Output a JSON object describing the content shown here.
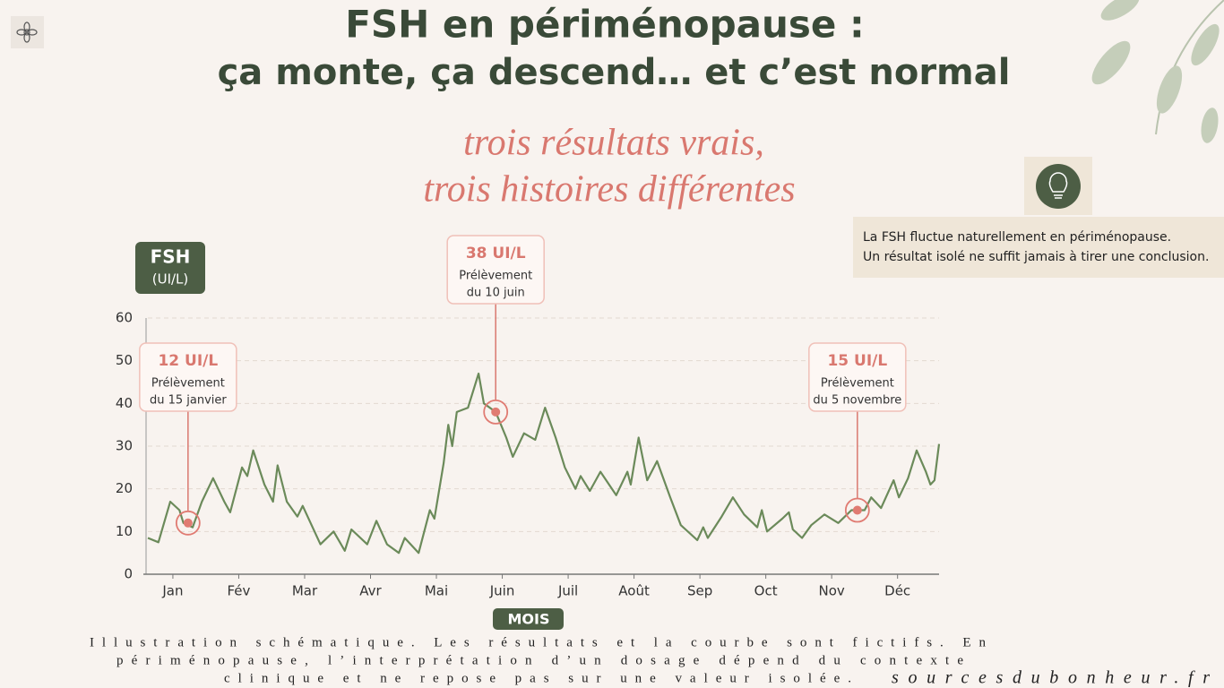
{
  "title_lines": [
    "FSH en périménopause :",
    "ça monte, ça descend… et c’est normal"
  ],
  "subtitle_lines": [
    "trois résultats vrais,",
    "trois histoires différentes"
  ],
  "info": [
    "La FSH fluctue naturellement en périménopause.",
    "Un résultat isolé ne suffit jamais à tirer une conclusion."
  ],
  "footer_lines": [
    "Illustration schématique. Les résultats et la courbe sont fictifs. En",
    "périménopause, l’interprétation d’un dosage dépend du contexte",
    "clinique et ne repose pas sur une valeur isolée."
  ],
  "brand": "sourcesdubonheur.fr",
  "chart_data": {
    "type": "line",
    "y_label": [
      "FSH",
      "(UI/L)"
    ],
    "x_label": "MOIS",
    "xlim": [
      -0.38,
      11.63
    ],
    "ylim": [
      0,
      60
    ],
    "xticks": [
      {
        "value": 0,
        "label": "Jan"
      },
      {
        "value": 1,
        "label": "Fév"
      },
      {
        "value": 2,
        "label": "Mar"
      },
      {
        "value": 3,
        "label": "Avr"
      },
      {
        "value": 4,
        "label": "Mai"
      },
      {
        "value": 5,
        "label": "Juin"
      },
      {
        "value": 6,
        "label": "Juil"
      },
      {
        "value": 7,
        "label": "Août"
      },
      {
        "value": 8,
        "label": "Sep"
      },
      {
        "value": 9,
        "label": "Oct"
      },
      {
        "value": 10,
        "label": "Nov"
      },
      {
        "value": 11,
        "label": "Déc"
      }
    ],
    "yticks": [
      0,
      10,
      20,
      30,
      40,
      50,
      60
    ],
    "grid": true,
    "x": [
      -0.38,
      -0.22,
      -0.04,
      0.1,
      0.16,
      0.3,
      0.44,
      0.61,
      0.78,
      0.87,
      1.05,
      1.13,
      1.22,
      1.39,
      1.52,
      1.59,
      1.73,
      1.89,
      1.97,
      2.24,
      2.44,
      2.61,
      2.71,
      2.95,
      3.09,
      3.25,
      3.43,
      3.52,
      3.73,
      3.9,
      3.97,
      4.11,
      4.18,
      4.24,
      4.31,
      4.48,
      4.64,
      4.72,
      4.9,
      5.06,
      5.16,
      5.33,
      5.5,
      5.65,
      5.81,
      5.95,
      6.11,
      6.19,
      6.33,
      6.49,
      6.73,
      6.9,
      6.95,
      7.07,
      7.2,
      7.35,
      7.55,
      7.71,
      7.96,
      8.05,
      8.12,
      8.33,
      8.5,
      8.67,
      8.87,
      8.94,
      9.02,
      9.25,
      9.35,
      9.41,
      9.55,
      9.69,
      9.89,
      10.1,
      10.3,
      10.5,
      10.6,
      10.75,
      10.94,
      11.02,
      11.16,
      11.29,
      11.43,
      11.5,
      11.56,
      11.63
    ],
    "series": [
      {
        "color": "#6b8a5a",
        "values": [
          8.5,
          7.5,
          17,
          15,
          12,
          11,
          17,
          22.5,
          17,
          14.5,
          25,
          23,
          29,
          21,
          17,
          25.5,
          17,
          13.5,
          16,
          7,
          10,
          5.5,
          10.5,
          7,
          12.5,
          7,
          5,
          8.5,
          5,
          15,
          13,
          26,
          35,
          30,
          38,
          39,
          47,
          40,
          38,
          32,
          27.5,
          33,
          31.5,
          39,
          32,
          25,
          20,
          23,
          19.5,
          24,
          18.5,
          24,
          21,
          32,
          22,
          26.5,
          18,
          11.5,
          8,
          11,
          8.5,
          13.5,
          18,
          14,
          11,
          15,
          10,
          13,
          14.5,
          10.5,
          8.5,
          11.5,
          14,
          12,
          15,
          15,
          18,
          15.5,
          22,
          18,
          22.5,
          29,
          24,
          21,
          22,
          30.5
        ]
      }
    ],
    "annotations": [
      {
        "x": 0.23,
        "value": 12,
        "label": "12 UI/L",
        "text": [
          "Prélèvement",
          "du 15 janvier"
        ]
      },
      {
        "x": 4.9,
        "value": 38,
        "label": "38 UI/L",
        "text": [
          "Prélèvement",
          "du 10 juin"
        ]
      },
      {
        "x": 10.39,
        "value": 15,
        "label": "15 UI/L",
        "text": [
          "Prélèvement",
          "du 5 novembre"
        ]
      }
    ]
  }
}
